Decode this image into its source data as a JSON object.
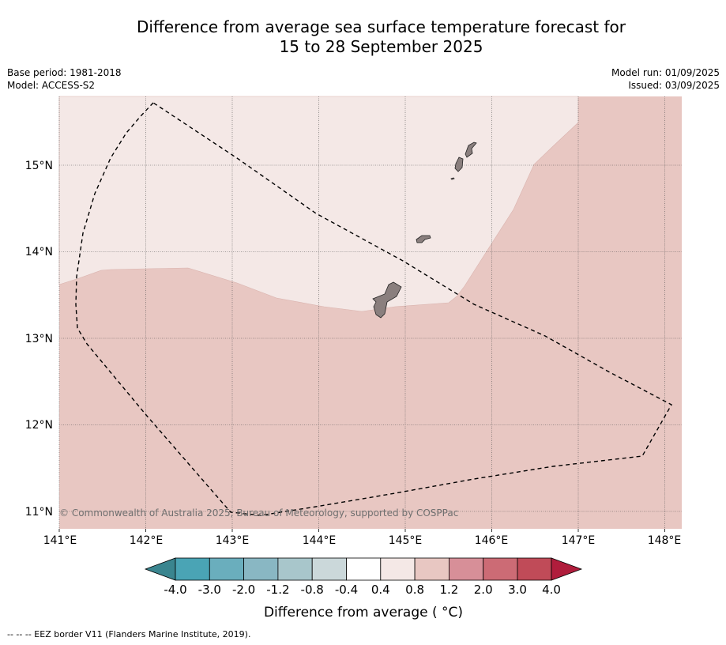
{
  "title": {
    "line1": "Difference from average sea surface temperature forecast for",
    "line2": "15 to 28 September 2025"
  },
  "meta_left": {
    "base_period": "Base period: 1981-2018",
    "model": "Model: ACCESS-S2"
  },
  "meta_right": {
    "model_run": "Model run: 01/09/2025",
    "issued": "Issued: 03/09/2025"
  },
  "map": {
    "lon_range": [
      141,
      148.2
    ],
    "lat_range": [
      10.8,
      15.8
    ],
    "lon_labels": [
      "141°E",
      "142°E",
      "143°E",
      "144°E",
      "145°E",
      "146°E",
      "147°E",
      "148°E"
    ],
    "lat_labels": [
      "11°N",
      "12°N",
      "13°N",
      "14°N",
      "15°N"
    ],
    "shading": [
      {
        "range": "0.4 to 0.8",
        "color": "#f4e8e6"
      },
      {
        "range": "0.8 to 1.2",
        "color": "#e8c7c2"
      }
    ],
    "land_color": "#8a7f7e",
    "copyright": "© Commonwealth of Australia 2025, Bureau of Meteorology, supported by COSPPac"
  },
  "colorbar": {
    "ticks": [
      "-4.0",
      "-3.0",
      "-2.0",
      "-1.2",
      "-0.8",
      "-0.4",
      "0.4",
      "0.8",
      "1.2",
      "2.0",
      "3.0",
      "4.0"
    ],
    "colors": [
      "#4aa4b5",
      "#6aaebd",
      "#89b7c3",
      "#a8c6cb",
      "#cbd8da",
      "#ffffff",
      "#f4e8e6",
      "#e8c7c2",
      "#d78f98",
      "#cc6b75",
      "#c04b58"
    ],
    "under_color": "#3a858f",
    "over_color": "#b01d3c",
    "title": "Difference from average ( °C)"
  },
  "footer": "--  --  -- EEZ border V11 (Flanders Marine Institute, 2019)."
}
